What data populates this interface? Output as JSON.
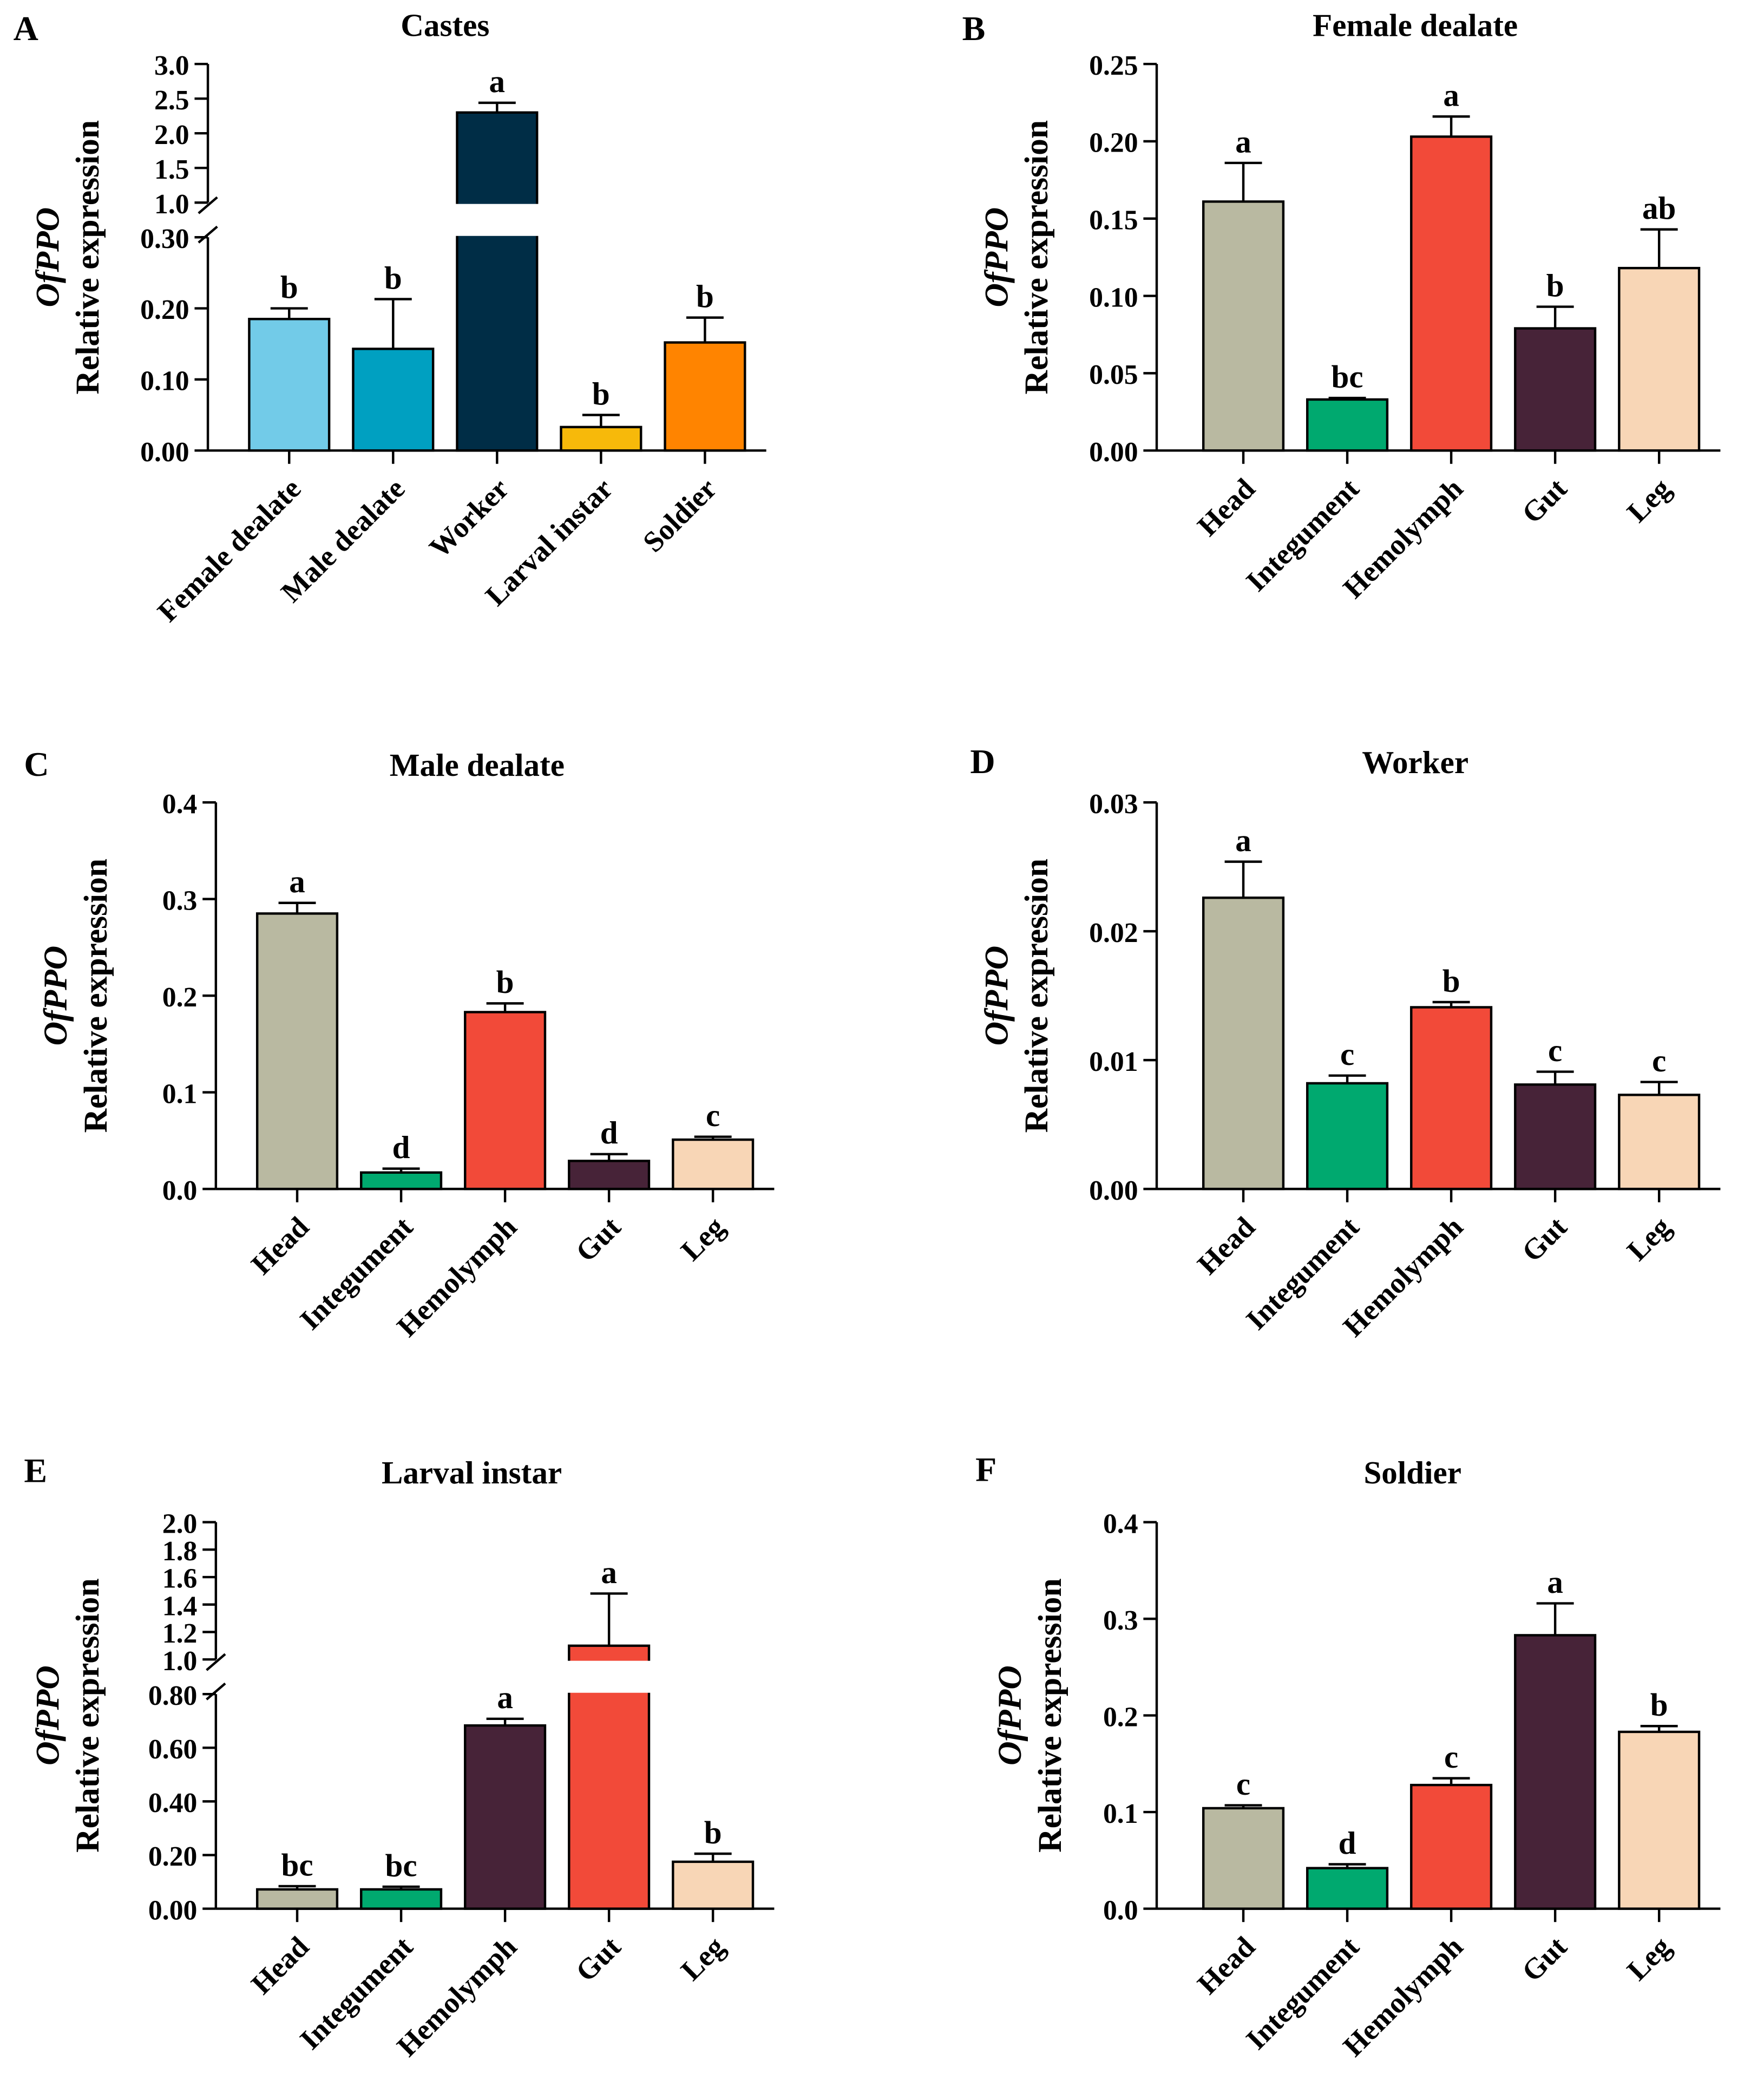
{
  "chart_data": [
    {
      "panel": "A",
      "title": "Castes",
      "type": "bar",
      "ylabel_gene": "OfPPO",
      "ylabel": "Relative expression",
      "categories": [
        "Female dealate",
        "Male dealate",
        "Worker",
        "Larval instar",
        "Soldier"
      ],
      "values": [
        0.185,
        0.143,
        2.3,
        0.033,
        0.152
      ],
      "errors": [
        0.015,
        0.07,
        0.14,
        0.017,
        0.035
      ],
      "letters": [
        "b",
        "b",
        "a",
        "b",
        "b"
      ],
      "colors": [
        "#72cbe8",
        "#00a0c1",
        "#002d46",
        "#f7b90a",
        "#ff8400"
      ],
      "broken_axis": true,
      "lower_ylim": [
        0,
        0.3
      ],
      "lower_ticks": [
        "0.00",
        "0.10",
        "0.20",
        "0.30"
      ],
      "upper_ylim": [
        1.0,
        3.0
      ],
      "upper_ticks": [
        "1.0",
        "1.5",
        "2.0",
        "2.5",
        "3.0"
      ]
    },
    {
      "panel": "B",
      "title": "Female dealate",
      "type": "bar",
      "ylabel_gene": "OfPPO",
      "ylabel": "Relative expression",
      "categories": [
        "Head",
        "Integument",
        "Hemolymph",
        "Gut",
        "Leg"
      ],
      "values": [
        0.161,
        0.033,
        0.203,
        0.079,
        0.118
      ],
      "errors": [
        0.025,
        0.001,
        0.013,
        0.014,
        0.025
      ],
      "letters": [
        "a",
        "bc",
        "a",
        "b",
        "ab"
      ],
      "colors": [
        "#b9b9a1",
        "#00a96f",
        "#f24a39",
        "#472338",
        "#f8d6b6"
      ],
      "ylim": [
        0,
        0.25
      ],
      "ticks": [
        "0.00",
        "0.05",
        "0.10",
        "0.15",
        "0.20",
        "0.25"
      ]
    },
    {
      "panel": "C",
      "title": "Male dealate",
      "type": "bar",
      "ylabel_gene": "OfPPO",
      "ylabel": "Relative expression",
      "categories": [
        "Head",
        "Integument",
        "Hemolymph",
        "Gut",
        "Leg"
      ],
      "values": [
        0.285,
        0.017,
        0.183,
        0.029,
        0.051
      ],
      "errors": [
        0.011,
        0.004,
        0.009,
        0.007,
        0.003
      ],
      "letters": [
        "a",
        "d",
        "b",
        "d",
        "c"
      ],
      "colors": [
        "#b9b9a1",
        "#00a96f",
        "#f24a39",
        "#472338",
        "#f8d6b6"
      ],
      "ylim": [
        0,
        0.4
      ],
      "ticks": [
        "0.0",
        "0.1",
        "0.2",
        "0.3",
        "0.4"
      ]
    },
    {
      "panel": "D",
      "title": "Worker",
      "type": "bar",
      "ylabel_gene": "OfPPO",
      "ylabel": "Relative expression",
      "categories": [
        "Head",
        "Integument",
        "Hemolymph",
        "Gut",
        "Leg"
      ],
      "values": [
        0.0226,
        0.0082,
        0.0141,
        0.0081,
        0.0073
      ],
      "errors": [
        0.0028,
        0.0006,
        0.0004,
        0.001,
        0.001
      ],
      "letters": [
        "a",
        "c",
        "b",
        "c",
        "c"
      ],
      "colors": [
        "#b9b9a1",
        "#00a96f",
        "#f24a39",
        "#472338",
        "#f8d6b6"
      ],
      "ylim": [
        0,
        0.03
      ],
      "ticks": [
        "0.00",
        "0.01",
        "0.02",
        "0.03"
      ]
    },
    {
      "panel": "E",
      "title": "Larval instar",
      "type": "bar",
      "ylabel_gene": "OfPPO",
      "ylabel": "Relative expression",
      "categories": [
        "Head",
        "Integument",
        "Hemolymph",
        "Gut",
        "Leg"
      ],
      "values": [
        0.072,
        0.072,
        0.683,
        1.1,
        0.175
      ],
      "errors": [
        0.012,
        0.01,
        0.025,
        0.38,
        0.03
      ],
      "letters": [
        "bc",
        "bc",
        "a",
        "a",
        "b"
      ],
      "colors": [
        "#b9b9a1",
        "#00a96f",
        "#472338",
        "#f24a39",
        "#f8d6b6"
      ],
      "broken_axis": true,
      "lower_ylim": [
        0,
        0.8
      ],
      "lower_ticks": [
        "0.00",
        "0.20",
        "0.40",
        "0.60",
        "0.80"
      ],
      "upper_ylim": [
        1.0,
        2.0
      ],
      "upper_ticks": [
        "1.0",
        "1.2",
        "1.4",
        "1.6",
        "1.8",
        "2.0"
      ]
    },
    {
      "panel": "F",
      "title": "Soldier",
      "type": "bar",
      "ylabel_gene": "OfPPO",
      "ylabel": "Relative expression",
      "categories": [
        "Head",
        "Integument",
        "Hemolymph",
        "Gut",
        "Leg"
      ],
      "values": [
        0.104,
        0.042,
        0.128,
        0.283,
        0.183
      ],
      "errors": [
        0.003,
        0.004,
        0.007,
        0.033,
        0.006
      ],
      "letters": [
        "c",
        "d",
        "c",
        "a",
        "b"
      ],
      "colors": [
        "#b9b9a1",
        "#00a96f",
        "#f24a39",
        "#472338",
        "#f8d6b6"
      ],
      "ylim": [
        0,
        0.4
      ],
      "ticks": [
        "0.0",
        "0.1",
        "0.2",
        "0.3",
        "0.4"
      ]
    }
  ]
}
